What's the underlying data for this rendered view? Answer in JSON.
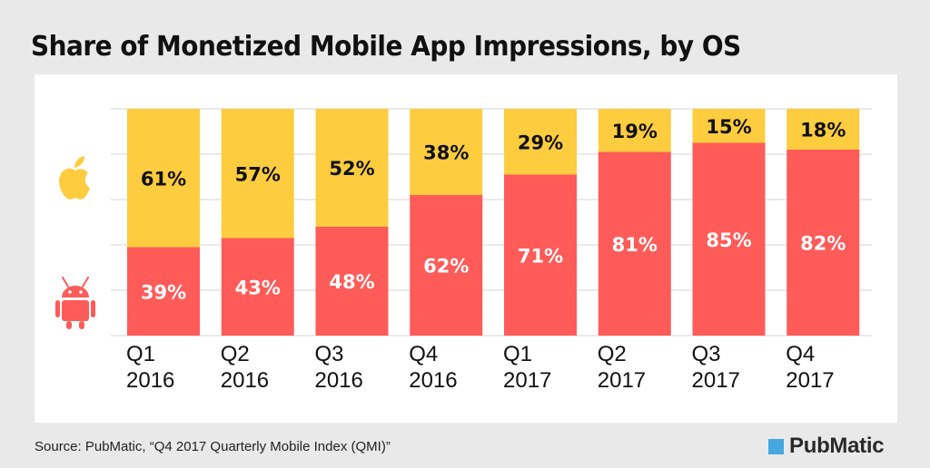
{
  "title": "Share of Monetized Mobile App Impressions, by OS",
  "source": "Source: PubMatic, “Q4 2017 Quarterly Mobile Index (QMI)”",
  "brand": "PubMatic",
  "colors": {
    "ios": "#fecc3f",
    "android": "#ff5b58",
    "brand": "#46a7e1"
  },
  "icons": {
    "ios": "apple-icon",
    "android": "android-icon"
  },
  "chart_data": {
    "type": "bar",
    "stacked": true,
    "title": "Share of Monetized Mobile App Impressions, by OS",
    "categories": [
      [
        "Q1",
        "2016"
      ],
      [
        "Q2",
        "2016"
      ],
      [
        "Q3",
        "2016"
      ],
      [
        "Q4",
        "2016"
      ],
      [
        "Q1",
        "2017"
      ],
      [
        "Q2",
        "2017"
      ],
      [
        "Q3",
        "2017"
      ],
      [
        "Q4",
        "2017"
      ]
    ],
    "series": [
      {
        "key": "android",
        "values": [
          39,
          43,
          48,
          62,
          71,
          81,
          85,
          82
        ],
        "labels": [
          "39%",
          "43%",
          "48%",
          "62%",
          "71%",
          "81%",
          "85%",
          "82%"
        ]
      },
      {
        "key": "ios",
        "values": [
          61,
          57,
          52,
          38,
          29,
          19,
          15,
          18
        ],
        "labels": [
          "61%",
          "57%",
          "52%",
          "38%",
          "29%",
          "19%",
          "15%",
          "18%"
        ]
      }
    ],
    "ylim": [
      0,
      100
    ],
    "grid": true,
    "legend": "left icons"
  }
}
